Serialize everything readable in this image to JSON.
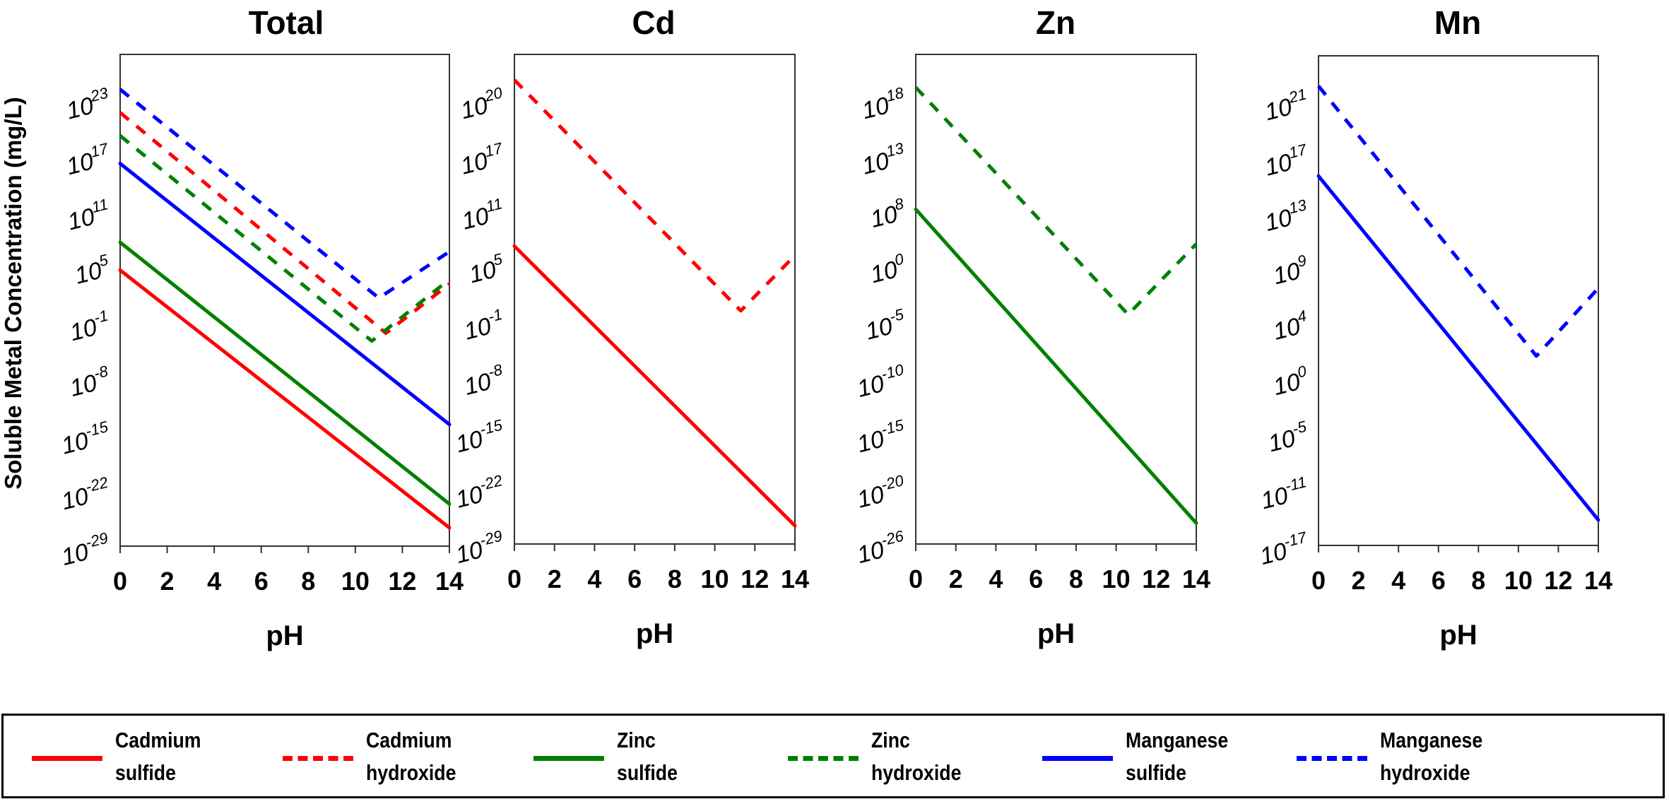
{
  "chart_data": {
    "type": "line",
    "shared": {
      "xlabel": "pH",
      "ylabel": "Soluble Metal Concentration (mg/L)",
      "xlim": [
        0,
        14
      ],
      "xticks": [
        0,
        2,
        4,
        6,
        8,
        10,
        12,
        14
      ],
      "yscale": "log"
    },
    "panels": [
      {
        "title": "Total",
        "ytick_exponents": [
          23,
          17,
          11,
          5,
          -1,
          -8,
          -15,
          -22,
          -29
        ],
        "series": [
          {
            "name": "Manganese hydroxide",
            "color": "#0000ff",
            "style": "dashed",
            "points": [
              [
                0,
                24.0
              ],
              [
                11.0,
                1.5
              ],
              [
                14,
                6.5
              ]
            ]
          },
          {
            "name": "Cadmium hydroxide",
            "color": "#ff0000",
            "style": "dashed",
            "points": [
              [
                0,
                21.5
              ],
              [
                11.3,
                -2.5
              ],
              [
                14,
                3.0
              ]
            ]
          },
          {
            "name": "Zinc hydroxide",
            "color": "#008000",
            "style": "dashed",
            "points": [
              [
                0,
                19.0
              ],
              [
                10.7,
                -3.5
              ],
              [
                14,
                3.5
              ]
            ]
          },
          {
            "name": "Manganese sulfide",
            "color": "#0000ff",
            "style": "solid",
            "points": [
              [
                0,
                16.0
              ],
              [
                14,
                -14.0
              ]
            ]
          },
          {
            "name": "Zinc sulfide",
            "color": "#008000",
            "style": "solid",
            "points": [
              [
                0,
                7.5
              ],
              [
                14,
                -24.0
              ]
            ]
          },
          {
            "name": "Cadmium sulfide",
            "color": "#ff0000",
            "style": "solid",
            "points": [
              [
                0,
                4.5
              ],
              [
                14,
                -27.0
              ]
            ]
          }
        ]
      },
      {
        "title": "Cd",
        "ytick_exponents": [
          20,
          17,
          11,
          5,
          -1,
          -8,
          -15,
          -22,
          -29
        ],
        "series": [
          {
            "name": "Cadmium hydroxide",
            "color": "#ff0000",
            "style": "dashed",
            "points": [
              [
                0,
                21.0
              ],
              [
                11.3,
                0.0
              ],
              [
                14,
                6.0
              ]
            ]
          },
          {
            "name": "Cadmium sulfide",
            "color": "#ff0000",
            "style": "solid",
            "points": [
              [
                0,
                7.0
              ],
              [
                14,
                -27.0
              ]
            ]
          }
        ]
      },
      {
        "title": "Zn",
        "ytick_exponents": [
          18,
          13,
          8,
          0,
          -5,
          -10,
          -15,
          -20,
          -26
        ],
        "series": [
          {
            "name": "Zinc hydroxide",
            "color": "#008000",
            "style": "dashed",
            "points": [
              [
                0,
                19.0
              ],
              [
                10.6,
                -4.5
              ],
              [
                14,
                3.0
              ]
            ]
          },
          {
            "name": "Zinc sulfide",
            "color": "#008000",
            "style": "solid",
            "points": [
              [
                0,
                8.0
              ],
              [
                14,
                -24.0
              ]
            ]
          }
        ]
      },
      {
        "title": "Mn",
        "ytick_exponents": [
          21,
          17,
          13,
          9,
          4,
          0,
          -5,
          -11,
          -17
        ],
        "series": [
          {
            "name": "Manganese hydroxide",
            "color": "#0000ff",
            "style": "dashed",
            "points": [
              [
                0,
                22.0
              ],
              [
                10.9,
                1.5
              ],
              [
                14,
                7.0
              ]
            ]
          },
          {
            "name": "Manganese sulfide",
            "color": "#0000ff",
            "style": "solid",
            "points": [
              [
                0,
                15.5
              ],
              [
                14,
                -14.5
              ]
            ]
          }
        ]
      }
    ],
    "legend": {
      "placement": "bottom",
      "entries": [
        {
          "line1": "Cadmium",
          "line2": "sulfide",
          "color": "#ff0000",
          "style": "solid"
        },
        {
          "line1": "Cadmium",
          "line2": "hydroxide",
          "color": "#ff0000",
          "style": "dashed"
        },
        {
          "line1": "Zinc",
          "line2": "sulfide",
          "color": "#008000",
          "style": "solid"
        },
        {
          "line1": "Zinc",
          "line2": "hydroxide",
          "color": "#008000",
          "style": "dashed"
        },
        {
          "line1": "Manganese",
          "line2": "sulfide",
          "color": "#0000ff",
          "style": "solid"
        },
        {
          "line1": "Manganese",
          "line2": "hydroxide",
          "color": "#0000ff",
          "style": "dashed"
        }
      ]
    }
  }
}
